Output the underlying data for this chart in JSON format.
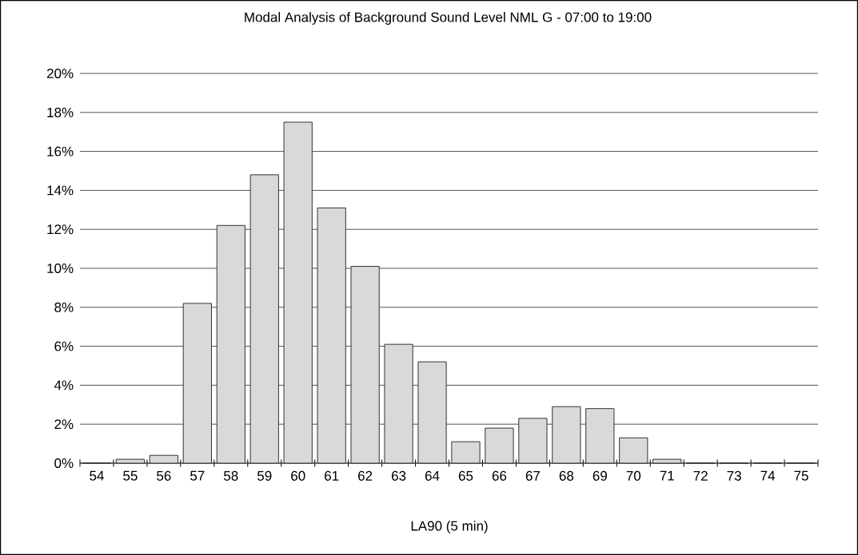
{
  "chart_data": {
    "type": "bar",
    "title": "Modal Analysis of Background Sound Level NML G  - 07:00 to 19:00",
    "xlabel": "LA90 (5 min)",
    "categories": [
      "54",
      "55",
      "56",
      "57",
      "58",
      "59",
      "60",
      "61",
      "62",
      "63",
      "64",
      "65",
      "66",
      "67",
      "68",
      "69",
      "70",
      "71",
      "72",
      "73",
      "74",
      "75"
    ],
    "values": [
      0,
      0.2,
      0.4,
      8.2,
      12.2,
      14.8,
      17.5,
      13.1,
      10.1,
      6.1,
      5.2,
      1.1,
      1.8,
      2.3,
      2.9,
      2.8,
      1.3,
      0.2,
      0,
      0,
      0,
      0
    ],
    "color": "#d9d9d9",
    "ylim": [
      0,
      20
    ],
    "yticks": [
      {
        "value": 0,
        "label": "0%"
      },
      {
        "value": 2,
        "label": "2%"
      },
      {
        "value": 4,
        "label": "4%"
      },
      {
        "value": 6,
        "label": "6%"
      },
      {
        "value": 8,
        "label": "8%"
      },
      {
        "value": 10,
        "label": "10%"
      },
      {
        "value": 12,
        "label": "12%"
      },
      {
        "value": 14,
        "label": "14%"
      },
      {
        "value": 16,
        "label": "16%"
      },
      {
        "value": 18,
        "label": "18%"
      },
      {
        "value": 20,
        "label": "20%"
      }
    ],
    "grid": "y"
  }
}
